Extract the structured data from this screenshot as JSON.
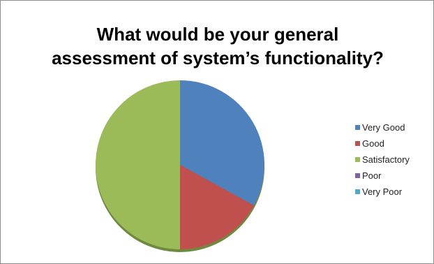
{
  "chart_data": {
    "type": "pie",
    "title_lines": [
      "What would be your general",
      "assessment of system’s functionality?"
    ],
    "categories": [
      "Very Good",
      "Good",
      "Satisfactory",
      "Poor",
      "Very Poor"
    ],
    "values": [
      33,
      17,
      50,
      0,
      0
    ],
    "colors": [
      "#4f81bd",
      "#c0504d",
      "#9bbb59",
      "#8064a2",
      "#4bacc6"
    ],
    "start_angle_deg": 0,
    "direction": "clockwise",
    "legend_position": "right"
  }
}
